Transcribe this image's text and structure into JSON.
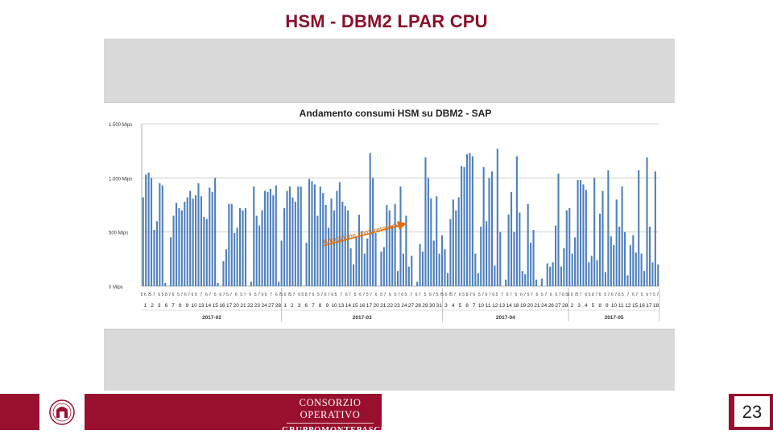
{
  "slide": {
    "title": "HSM - DBM2 LPAR CPU",
    "page_number": "23",
    "brand_line1": "CONSORZIO OPERATIVO",
    "brand_line2": "GRUPPOMONTEPASCHI"
  },
  "colors": {
    "brand": "#99102e",
    "title": "#8b0f2a",
    "bar": "#4f81bd",
    "annotation": "#e46c0a"
  },
  "chart_data": {
    "type": "bar",
    "title": "Andamento consumi HSM su DBM2 - SAP",
    "xlabel": "",
    "ylabel": "",
    "ylim": [
      0,
      1500
    ],
    "yticks": [
      0,
      500,
      1000,
      1500
    ],
    "ytick_labels": [
      "0 Mips",
      "500 Mips",
      "1.000 Mips",
      "1.500 Mips"
    ],
    "grid": true,
    "legend": "none",
    "annotation": "Attivazione compressione",
    "months": [
      "2017-02",
      "2017-03",
      "2017-04",
      "2017-05"
    ],
    "day_labels": [
      [
        "1",
        "2",
        "3",
        "6",
        "7",
        "8",
        "9",
        "10",
        "13",
        "14",
        "15",
        "16",
        "17",
        "20",
        "21",
        "22",
        "23",
        "24",
        "27",
        "28"
      ],
      [
        "1",
        "2",
        "3",
        "6",
        "7",
        "8",
        "9",
        "10",
        "13",
        "14",
        "15",
        "16",
        "17",
        "20",
        "21",
        "22",
        "23",
        "24",
        "27",
        "28",
        "29",
        "30",
        "31"
      ],
      [
        "3",
        "4",
        "5",
        "6",
        "7",
        "10",
        "11",
        "12",
        "13",
        "14",
        "18",
        "19",
        "20",
        "21",
        "24",
        "26",
        "27",
        "28"
      ],
      [
        "2",
        "3",
        "4",
        "5",
        "8",
        "9",
        "10",
        "11",
        "12",
        "15",
        "16",
        "17",
        "18"
      ]
    ],
    "hour_labels": [
      [
        "5 6 7",
        "5 7",
        "6",
        "5 8 7",
        "6",
        "5 7",
        "6 7",
        "6 5",
        "7",
        "6 7",
        "5",
        "6 7",
        "5 7",
        "6",
        "5 7",
        "6",
        "5 7",
        "6 5",
        "7",
        "6 7"
      ],
      [
        "5 6 7",
        "5 7",
        "6",
        "5 8 7",
        "6",
        "5 7",
        "6 7",
        "6 5",
        "7",
        "6 7",
        "5",
        "6 7",
        "5 7",
        "6",
        "5 7",
        "6",
        "5 7",
        "6 5",
        "7",
        "6 7",
        "5",
        "6 7",
        "5 7"
      ],
      [
        "5 6 7",
        "5 7",
        "6",
        "5 8 7",
        "6",
        "5 7",
        "6 7",
        "6 5",
        "7",
        "6 7",
        "5",
        "6 7",
        "5 7",
        "6",
        "5 7",
        "6",
        "5 7",
        "6 5"
      ],
      [
        "5 6 7",
        "5 7",
        "6",
        "5 8 7",
        "6",
        "5 7",
        "6 7",
        "6 5",
        "7",
        "6 7",
        "5",
        "6 7",
        "5 7"
      ]
    ],
    "values": [
      820,
      1030,
      1050,
      1000,
      520,
      600,
      950,
      930,
      30,
      0,
      450,
      650,
      770,
      720,
      700,
      780,
      820,
      880,
      810,
      840,
      950,
      830,
      640,
      620,
      910,
      870,
      1000,
      30,
      0,
      230,
      340,
      760,
      760,
      490,
      540,
      720,
      700,
      720,
      0,
      40,
      920,
      650,
      560,
      700,
      880,
      870,
      900,
      840,
      930,
      40,
      420,
      720,
      880,
      920,
      820,
      780,
      920,
      920,
      0,
      400,
      990,
      970,
      940,
      650,
      920,
      860,
      750,
      540,
      810,
      700,
      880,
      960,
      780,
      740,
      700,
      350,
      200,
      450,
      660,
      510,
      300,
      440,
      1230,
      1000,
      490,
      0,
      320,
      360,
      750,
      700,
      560,
      760,
      140,
      920,
      300,
      650,
      180,
      280,
      0,
      40,
      390,
      320,
      1190,
      1000,
      810,
      420,
      830,
      300,
      470,
      340,
      120,
      620,
      800,
      700,
      820,
      1110,
      1100,
      1220,
      1230,
      1200,
      300,
      120,
      550,
      1100,
      600,
      1000,
      1060,
      190,
      1270,
      500,
      0,
      60,
      660,
      870,
      500,
      1200,
      680,
      140,
      110,
      760,
      400,
      520,
      60,
      0,
      70,
      0,
      210,
      180,
      220,
      560,
      1040,
      180,
      350,
      700,
      720,
      300,
      450,
      980,
      980,
      940,
      890,
      220,
      280,
      1000,
      240,
      670,
      880,
      130,
      1070,
      460,
      380,
      800,
      550,
      920,
      500,
      100,
      380,
      470,
      310,
      1070,
      300,
      140,
      1190,
      550,
      220,
      1060,
      200
    ]
  }
}
